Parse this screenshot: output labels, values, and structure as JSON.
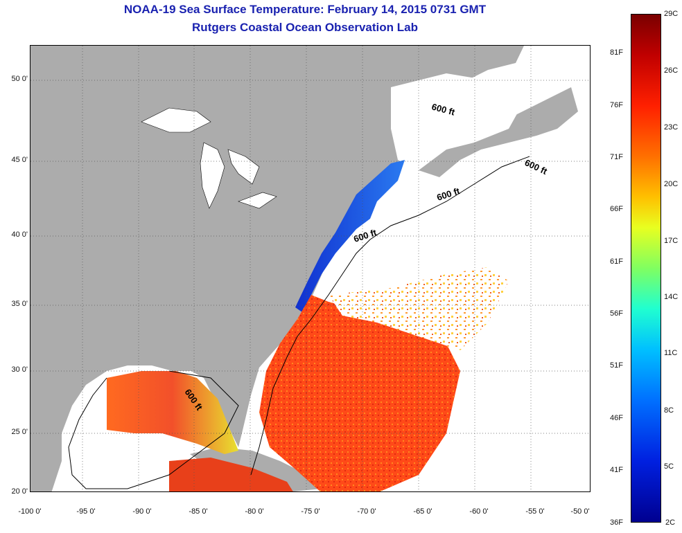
{
  "title_line1": "NOAA-19 Sea Surface Temperature:  February 14, 2015 0731 GMT",
  "title_line2": "Rutgers Coastal Ocean Observation Lab",
  "lat_ticks": [
    "50 0'",
    "45 0'",
    "40 0'",
    "35 0'",
    "30 0'",
    "25 0'",
    "20 0'"
  ],
  "lon_ticks": [
    "-100 0'",
    "-95 0'",
    "-90 0'",
    "-85 0'",
    "-80 0'",
    "-75 0'",
    "-70 0'",
    "-65 0'",
    "-60 0'",
    "-55 0'",
    "-50 0'"
  ],
  "contour_labels": [
    "600 ft",
    "600 ft",
    "600 ft",
    "600 ft",
    "600 ft"
  ],
  "colorbar": {
    "celsius": [
      "29C",
      "26C",
      "23C",
      "20C",
      "17C",
      "14C",
      "11C",
      "8C",
      "5C",
      "2C"
    ],
    "fahrenheit": [
      "81F",
      "76F",
      "71F",
      "66F",
      "61F",
      "56F",
      "51F",
      "46F",
      "41F",
      "36F"
    ]
  },
  "colors": {
    "land": "#acacac",
    "title": "#1a22b0",
    "ocean_cloud": "#ffffff"
  }
}
